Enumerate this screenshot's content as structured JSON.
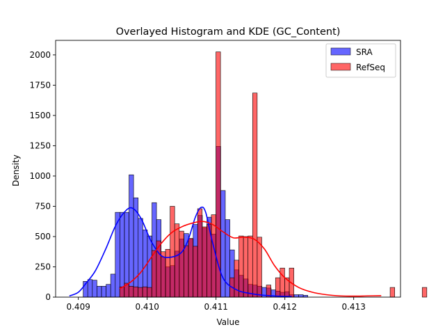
{
  "chart_data": {
    "type": "bar",
    "title": "Overlayed Histogram and KDE (GC_Content)",
    "xlabel": "Value",
    "ylabel": "Density",
    "xlim": [
      0.40867,
      0.41368
    ],
    "ylim": [
      0,
      2120
    ],
    "xticks": [
      "0.409",
      "0.410",
      "0.411",
      "0.412",
      "0.413"
    ],
    "yticks": [
      "0",
      "250",
      "500",
      "750",
      "1000",
      "1250",
      "1500",
      "1750",
      "2000"
    ],
    "grid": false,
    "legend_position": "top-right",
    "series": [
      {
        "name": "SRA",
        "kind": "histogram",
        "color": "#0000ff",
        "bin_width": 6.66e-05,
        "bin_start": 0.40907,
        "values": [
          130,
          145,
          140,
          90,
          90,
          105,
          190,
          700,
          700,
          700,
          1010,
          820,
          650,
          555,
          505,
          780,
          640,
          330,
          250,
          260,
          380,
          480,
          525,
          480,
          600,
          675,
          570,
          660,
          520,
          1245,
          880,
          640,
          390,
          225,
          180,
          150,
          105,
          100,
          90,
          80,
          75,
          60,
          50,
          40,
          45,
          20,
          20,
          20,
          15,
          0
        ]
      },
      {
        "name": "RefSeq",
        "kind": "histogram",
        "color": "#ff0000",
        "bin_width": 6.66e-05,
        "bin_start": 0.4096,
        "values": [
          85,
          115,
          90,
          85,
          80,
          85,
          80,
          385,
          465,
          375,
          395,
          750,
          605,
          545,
          425,
          485,
          420,
          730,
          580,
          600,
          680,
          2025,
          0,
          0,
          160,
          305,
          505,
          500,
          505,
          1685,
          495,
          0,
          100,
          0,
          160,
          240,
          160,
          240,
          0,
          0,
          0,
          0,
          0,
          0,
          0,
          0,
          0,
          0,
          0,
          0,
          0,
          0,
          0,
          0,
          0,
          0,
          0,
          0,
          0,
          80,
          0,
          0,
          0,
          0,
          0,
          0,
          80
        ]
      }
    ],
    "kde": [
      {
        "name": "SRA",
        "color": "#0000ff",
        "x": [
          0.40887,
          0.409,
          0.40912,
          0.40925,
          0.4094,
          0.40955,
          0.4097,
          0.4098,
          0.40992,
          0.41005,
          0.4102,
          0.41035,
          0.4105,
          0.4106,
          0.4107,
          0.41078,
          0.41085,
          0.41095,
          0.4111,
          0.4113,
          0.4115,
          0.4117,
          0.4119,
          0.4121
        ],
        "y": [
          10,
          40,
          120,
          220,
          400,
          600,
          720,
          730,
          640,
          470,
          345,
          330,
          370,
          480,
          660,
          740,
          700,
          450,
          160,
          60,
          30,
          15,
          8,
          5
        ]
      },
      {
        "name": "RefSeq",
        "color": "#ff0000",
        "x": [
          0.4096,
          0.40975,
          0.4099,
          0.41005,
          0.4102,
          0.41035,
          0.4105,
          0.41065,
          0.4108,
          0.41095,
          0.4111,
          0.41125,
          0.4114,
          0.41155,
          0.4117,
          0.41185,
          0.412,
          0.4122,
          0.4124,
          0.4126,
          0.4128,
          0.413,
          0.4132,
          0.4134
        ],
        "y": [
          70,
          120,
          200,
          320,
          440,
          530,
          580,
          610,
          625,
          600,
          540,
          490,
          495,
          480,
          400,
          260,
          160,
          80,
          40,
          20,
          10,
          8,
          10,
          12
        ]
      }
    ]
  }
}
